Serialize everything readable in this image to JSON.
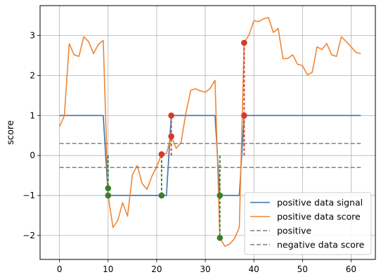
{
  "chart_data": {
    "type": "line",
    "title": "",
    "xlabel": "",
    "ylabel": "score",
    "xlim": [
      -4,
      65
    ],
    "ylim": [
      -2.6,
      3.75
    ],
    "xticks": [
      0,
      10,
      20,
      30,
      40,
      50,
      60
    ],
    "yticks": [
      -2,
      -1,
      0,
      1,
      2,
      3
    ],
    "grid": true,
    "legend_position": "lower-right",
    "colors": {
      "signal": "#3b75af",
      "score": "#ef8636",
      "threshold": "#7f7f7f",
      "marker_red": "#d43a2a",
      "marker_green": "#3a7d2b"
    },
    "series": [
      {
        "name": "positive data signal",
        "color": "#3b75af",
        "style": "solid",
        "x": [
          0,
          9,
          10,
          22,
          23,
          32,
          33,
          37,
          38,
          62
        ],
        "y": [
          1,
          1,
          -1,
          -1,
          1,
          1,
          -1,
          -1,
          1,
          1
        ]
      },
      {
        "name": "positive data score",
        "color": "#ef8636",
        "style": "solid",
        "x": [
          0,
          1,
          2,
          3,
          4,
          5,
          6,
          7,
          8,
          9,
          10,
          11,
          12,
          13,
          14,
          15,
          16,
          17,
          18,
          19,
          20,
          21,
          22,
          23,
          24,
          25,
          26,
          27,
          28,
          29,
          30,
          31,
          32,
          33,
          34,
          35,
          36,
          37,
          38,
          39,
          40,
          41,
          42,
          43,
          44,
          45,
          46,
          47,
          48,
          49,
          50,
          51,
          52,
          53,
          54,
          55,
          56,
          57,
          58,
          59,
          60,
          61,
          62
        ],
        "y": [
          0.72,
          1.0,
          2.8,
          2.52,
          2.48,
          2.97,
          2.85,
          2.55,
          2.78,
          2.88,
          -1.0,
          -1.8,
          -1.62,
          -1.18,
          -1.52,
          -0.48,
          -0.25,
          -0.7,
          -0.85,
          -0.52,
          -0.28,
          0.03,
          0.05,
          0.48,
          0.18,
          0.32,
          1.05,
          1.63,
          1.67,
          1.62,
          1.58,
          1.68,
          1.88,
          -2.06,
          -2.27,
          -2.22,
          -2.08,
          -1.8,
          2.82,
          3.02,
          3.37,
          3.35,
          3.42,
          3.45,
          3.08,
          3.18,
          2.42,
          2.43,
          2.52,
          2.28,
          2.25,
          2.02,
          2.08,
          2.72,
          2.65,
          2.8,
          2.52,
          2.48,
          2.97,
          2.85,
          2.72,
          2.58,
          2.55
        ]
      },
      {
        "name": "positive",
        "color": "#7f7f7f",
        "style": "dashed",
        "x": [
          0,
          62
        ],
        "y": [
          0.3,
          0.3
        ]
      },
      {
        "name": "negative data score",
        "color": "#7f7f7f",
        "style": "dashed",
        "x": [
          0,
          62
        ],
        "y": [
          -0.3,
          -0.3
        ]
      }
    ],
    "markers": [
      {
        "color": "red",
        "x": 21,
        "y": 0.03
      },
      {
        "color": "red",
        "x": 23,
        "y": 0.48
      },
      {
        "color": "red",
        "x": 23,
        "y": 1.0
      },
      {
        "color": "red",
        "x": 38,
        "y": 1.0
      },
      {
        "color": "red",
        "x": 38,
        "y": 2.82
      },
      {
        "color": "green",
        "x": 10,
        "y": -0.82
      },
      {
        "color": "green",
        "x": 10,
        "y": -1.0
      },
      {
        "color": "green",
        "x": 21,
        "y": -1.0
      },
      {
        "color": "green",
        "x": 33,
        "y": -1.0
      },
      {
        "color": "green",
        "x": 33,
        "y": -2.06
      }
    ],
    "dashed_connectors": [
      {
        "color": "red",
        "x": 23,
        "y_from": 0.0,
        "y_to": 1.0
      },
      {
        "color": "red",
        "x": 38,
        "y_from": 0.0,
        "y_to": 2.82
      },
      {
        "color": "green",
        "x": 10,
        "y_from": 0.0,
        "y_to": -1.0
      },
      {
        "color": "green",
        "x": 21,
        "y_from": 0.0,
        "y_to": -1.0
      },
      {
        "color": "green",
        "x": 33,
        "y_from": 0.0,
        "y_to": -2.06
      }
    ],
    "legend": [
      {
        "label": "positive data signal",
        "color": "#3b75af",
        "style": "solid"
      },
      {
        "label": "positive data score",
        "color": "#ef8636",
        "style": "solid"
      },
      {
        "label": "positive",
        "color": "#7f7f7f",
        "style": "dashed"
      },
      {
        "label": "negative data score",
        "color": "#7f7f7f",
        "style": "dashed"
      }
    ]
  }
}
